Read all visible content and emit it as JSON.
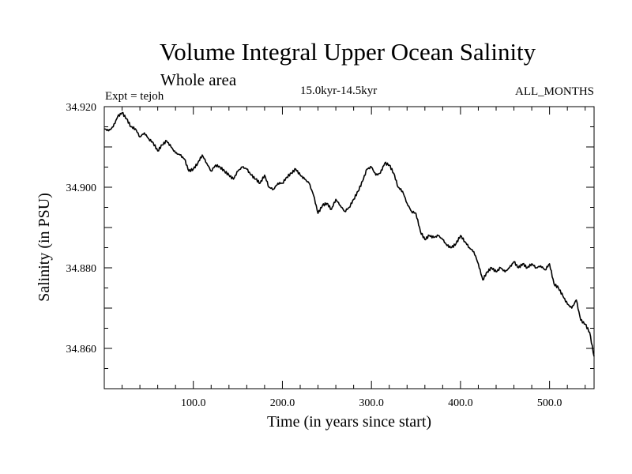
{
  "title": "Volume Integral Upper Ocean Salinity",
  "subtitle": "Whole area",
  "experiment_label": "Expt = tejoh",
  "period_label": "15.0kyr-14.5kyr",
  "months_label": "ALL_MONTHS",
  "chart_data": {
    "type": "line",
    "title": "Volume Integral Upper Ocean Salinity",
    "xlabel": "Time (in years since start)",
    "ylabel": "Salinity (in PSU)",
    "xlim": [
      0,
      550
    ],
    "ylim": [
      34.85,
      34.92
    ],
    "xticks": [
      100,
      200,
      300,
      400,
      500
    ],
    "xtick_labels": [
      "100.0",
      "200.0",
      "300.0",
      "400.0",
      "500.0"
    ],
    "yticks": [
      34.86,
      34.88,
      34.9,
      34.92
    ],
    "ytick_labels": [
      "34.860",
      "34.880",
      "34.900",
      "34.920"
    ],
    "grid": false,
    "series": [
      {
        "name": "Salinity",
        "color": "#000000",
        "x": [
          0,
          5,
          10,
          15,
          20,
          25,
          30,
          35,
          40,
          45,
          50,
          55,
          60,
          65,
          70,
          75,
          80,
          85,
          90,
          95,
          100,
          105,
          110,
          115,
          120,
          125,
          130,
          135,
          140,
          145,
          150,
          155,
          160,
          165,
          170,
          175,
          180,
          185,
          190,
          195,
          200,
          205,
          210,
          215,
          220,
          225,
          230,
          235,
          240,
          245,
          250,
          255,
          260,
          265,
          270,
          275,
          280,
          285,
          290,
          295,
          300,
          305,
          310,
          315,
          320,
          325,
          330,
          335,
          340,
          345,
          350,
          355,
          360,
          365,
          370,
          375,
          380,
          385,
          390,
          395,
          400,
          405,
          410,
          415,
          420,
          425,
          430,
          435,
          440,
          445,
          450,
          455,
          460,
          465,
          470,
          475,
          480,
          485,
          490,
          495,
          500,
          505,
          510,
          515,
          520,
          525,
          530,
          535,
          540,
          545,
          550
        ],
        "values": [
          34.9145,
          34.914,
          34.915,
          34.9175,
          34.9185,
          34.917,
          34.915,
          34.9145,
          34.9125,
          34.9135,
          34.912,
          34.911,
          34.909,
          34.9105,
          34.9115,
          34.91,
          34.9085,
          34.908,
          34.907,
          34.904,
          34.9045,
          34.906,
          34.908,
          34.906,
          34.904,
          34.9055,
          34.905,
          34.904,
          34.903,
          34.902,
          34.904,
          34.905,
          34.9045,
          34.903,
          34.902,
          34.901,
          34.903,
          34.9,
          34.8995,
          34.901,
          34.901,
          34.9025,
          34.9035,
          34.9045,
          34.903,
          34.902,
          34.901,
          34.898,
          34.8935,
          34.8955,
          34.896,
          34.8945,
          34.897,
          34.8955,
          34.894,
          34.895,
          34.897,
          34.899,
          34.9015,
          34.9045,
          34.905,
          34.903,
          34.9035,
          34.906,
          34.9055,
          34.9035,
          34.9,
          34.899,
          34.896,
          34.894,
          34.8935,
          34.889,
          34.887,
          34.888,
          34.8875,
          34.888,
          34.887,
          34.8855,
          34.885,
          34.886,
          34.888,
          34.8865,
          34.885,
          34.884,
          34.881,
          34.877,
          34.879,
          34.88,
          34.879,
          34.88,
          34.879,
          34.88,
          34.8815,
          34.88,
          34.881,
          34.88,
          34.881,
          34.88,
          34.8805,
          34.8795,
          34.881,
          34.876,
          34.875,
          34.873,
          34.871,
          34.87,
          34.872,
          34.867,
          34.866,
          34.864,
          34.858
        ]
      }
    ]
  }
}
